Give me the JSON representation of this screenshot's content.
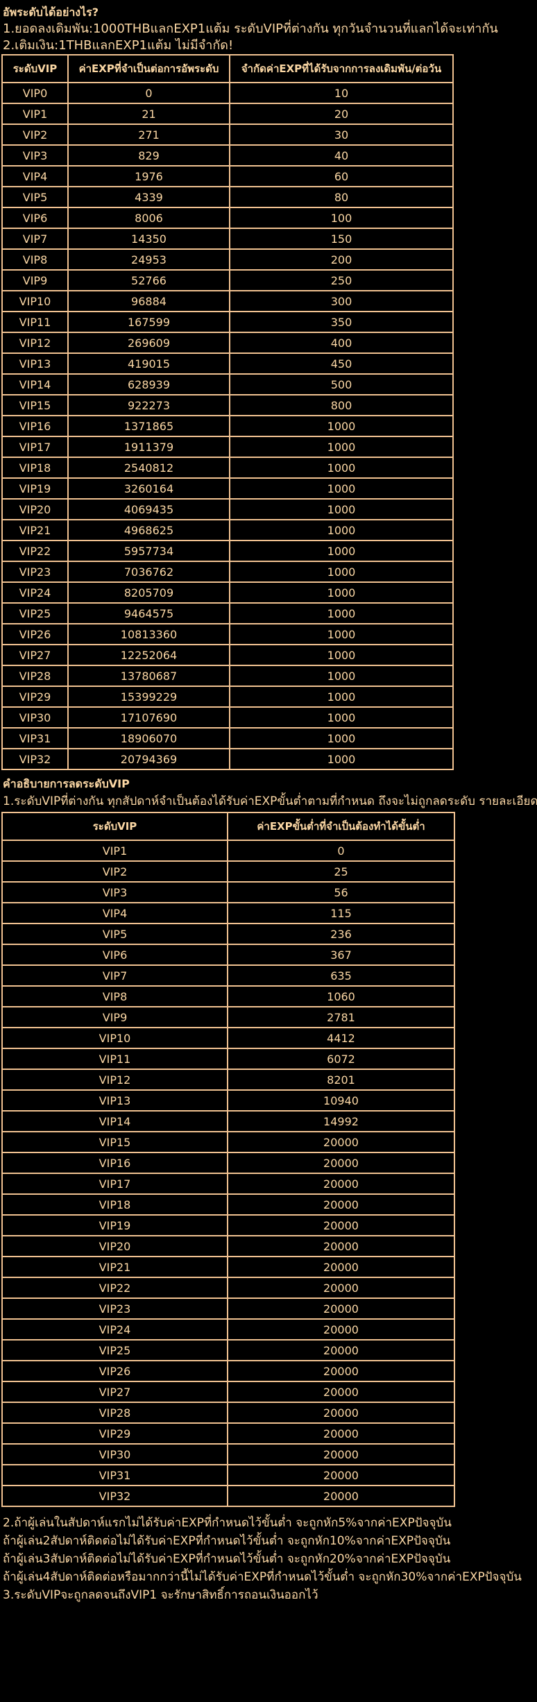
{
  "colors": {
    "background": "#000000",
    "text": "#FCD8A5",
    "border": "#F2C392"
  },
  "intro": {
    "heading": "อัพระดับได้อย่างไร?",
    "lines": [
      "1.ยอดลงเดิมพัน:1000THBแลกEXP1แต้ม ระดับVIPที่ต่างกัน ทุกวันจำนวนที่แลกได้จะเท่ากัน",
      "2.เติมเงิน:1THBแลกEXP1แต้ม ไม่มีจำกัด!"
    ]
  },
  "table1": {
    "headers": [
      "ระดับVIP",
      "ค่าEXPที่จำเป็นต่อการอัพระดับ",
      "จำกัดค่าEXPที่ได้รับจากการลงเดิมพัน/ต่อวัน"
    ],
    "rows": [
      [
        "VIP0",
        "0",
        "10"
      ],
      [
        "VIP1",
        "21",
        "20"
      ],
      [
        "VIP2",
        "271",
        "30"
      ],
      [
        "VIP3",
        "829",
        "40"
      ],
      [
        "VIP4",
        "1976",
        "60"
      ],
      [
        "VIP5",
        "4339",
        "80"
      ],
      [
        "VIP6",
        "8006",
        "100"
      ],
      [
        "VIP7",
        "14350",
        "150"
      ],
      [
        "VIP8",
        "24953",
        "200"
      ],
      [
        "VIP9",
        "52766",
        "250"
      ],
      [
        "VIP10",
        "96884",
        "300"
      ],
      [
        "VIP11",
        "167599",
        "350"
      ],
      [
        "VIP12",
        "269609",
        "400"
      ],
      [
        "VIP13",
        "419015",
        "450"
      ],
      [
        "VIP14",
        "628939",
        "500"
      ],
      [
        "VIP15",
        "922273",
        "800"
      ],
      [
        "VIP16",
        "1371865",
        "1000"
      ],
      [
        "VIP17",
        "1911379",
        "1000"
      ],
      [
        "VIP18",
        "2540812",
        "1000"
      ],
      [
        "VIP19",
        "3260164",
        "1000"
      ],
      [
        "VIP20",
        "4069435",
        "1000"
      ],
      [
        "VIP21",
        "4968625",
        "1000"
      ],
      [
        "VIP22",
        "5957734",
        "1000"
      ],
      [
        "VIP23",
        "7036762",
        "1000"
      ],
      [
        "VIP24",
        "8205709",
        "1000"
      ],
      [
        "VIP25",
        "9464575",
        "1000"
      ],
      [
        "VIP26",
        "10813360",
        "1000"
      ],
      [
        "VIP27",
        "12252064",
        "1000"
      ],
      [
        "VIP28",
        "13780687",
        "1000"
      ],
      [
        "VIP29",
        "15399229",
        "1000"
      ],
      [
        "VIP30",
        "17107690",
        "1000"
      ],
      [
        "VIP31",
        "18906070",
        "1000"
      ],
      [
        "VIP32",
        "20794369",
        "1000"
      ]
    ]
  },
  "downgrade": {
    "heading": "คำอธิบายการลดระดับVIP",
    "intro": "1.ระดับVIPที่ต่างกัน ทุกสัปดาห์จำเป็นต้องได้รับค่าEXPขั้นต่ำตามที่กำหนด ถึงจะไม่ถูกลดระดับ รายละเอียดดังนี้"
  },
  "table2": {
    "headers": [
      "ระดับVIP",
      "ค่าEXPขั้นต่ำที่จำเป็นต้องทำได้ขั้นต่ำ"
    ],
    "rows": [
      [
        "VIP1",
        "0"
      ],
      [
        "VIP2",
        "25"
      ],
      [
        "VIP3",
        "56"
      ],
      [
        "VIP4",
        "115"
      ],
      [
        "VIP5",
        "236"
      ],
      [
        "VIP6",
        "367"
      ],
      [
        "VIP7",
        "635"
      ],
      [
        "VIP8",
        "1060"
      ],
      [
        "VIP9",
        "2781"
      ],
      [
        "VIP10",
        "4412"
      ],
      [
        "VIP11",
        "6072"
      ],
      [
        "VIP12",
        "8201"
      ],
      [
        "VIP13",
        "10940"
      ],
      [
        "VIP14",
        "14992"
      ],
      [
        "VIP15",
        "20000"
      ],
      [
        "VIP16",
        "20000"
      ],
      [
        "VIP17",
        "20000"
      ],
      [
        "VIP18",
        "20000"
      ],
      [
        "VIP19",
        "20000"
      ],
      [
        "VIP20",
        "20000"
      ],
      [
        "VIP21",
        "20000"
      ],
      [
        "VIP22",
        "20000"
      ],
      [
        "VIP23",
        "20000"
      ],
      [
        "VIP24",
        "20000"
      ],
      [
        "VIP25",
        "20000"
      ],
      [
        "VIP26",
        "20000"
      ],
      [
        "VIP27",
        "20000"
      ],
      [
        "VIP28",
        "20000"
      ],
      [
        "VIP29",
        "20000"
      ],
      [
        "VIP30",
        "20000"
      ],
      [
        "VIP31",
        "20000"
      ],
      [
        "VIP32",
        "20000"
      ]
    ]
  },
  "footer": {
    "lines": [
      "2.ถ้าผู้เล่นในสัปดาห์แรกไม่ได้รับค่าEXPที่กำหนดไว้ขั้นต่ำ จะถูกหัก5%จากค่าEXPปัจจุบัน",
      "ถ้าผู้เล่น2สัปดาห์ติดต่อไม่ได้รับค่าEXPที่กำหนดไว้ขั้นต่ำ จะถูกหัก10%จากค่าEXPปัจจุบัน",
      "ถ้าผู้เล่น3สัปดาห์ติดต่อไม่ได้รับค่าEXPที่กำหนดไว้ขั้นต่ำ จะถูกหัก20%จากค่าEXPปัจจุบัน",
      "ถ้าผู้เล่น4สัปดาห์ติดต่อหรือมากกว่านี้ไม่ได้รับค่าEXPที่กำหนดไว้ขั้นต่ำ จะถูกหัก30%จากค่าEXPปัจจุบัน",
      "3.ระดับVIPจะถูกลดจนถึงVIP1 จะรักษาสิทธิ์การถอนเงินออกไว้"
    ]
  }
}
